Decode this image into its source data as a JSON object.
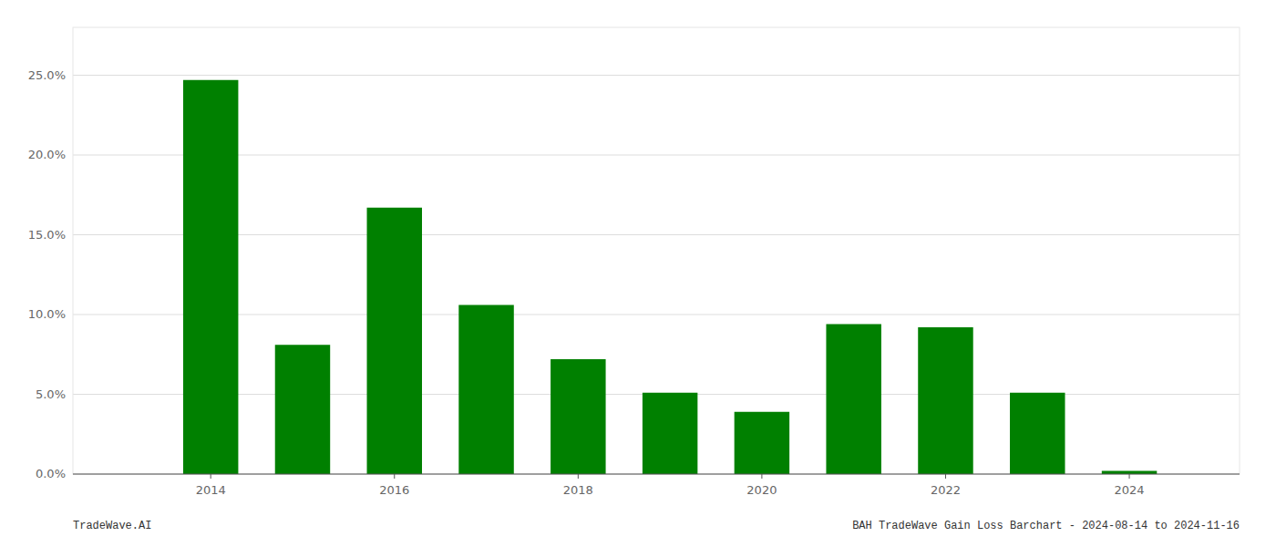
{
  "chart_data": {
    "type": "bar",
    "x": [
      2014,
      2015,
      2016,
      2017,
      2018,
      2019,
      2020,
      2021,
      2022,
      2023,
      2024
    ],
    "values": [
      0.247,
      0.081,
      0.167,
      0.106,
      0.072,
      0.051,
      0.039,
      0.094,
      0.092,
      0.051,
      0.002
    ],
    "color": "#008000",
    "xlim": [
      2012.5,
      2025.2
    ],
    "xticks": [
      2014,
      2016,
      2018,
      2020,
      2022,
      2024
    ],
    "ylim": [
      0,
      0.28
    ],
    "yticks": [
      {
        "value": 0.0,
        "label": "0.0%"
      },
      {
        "value": 0.05,
        "label": "5.0%"
      },
      {
        "value": 0.1,
        "label": "10.0%"
      },
      {
        "value": 0.15,
        "label": "15.0%"
      },
      {
        "value": 0.2,
        "label": "20.0%"
      },
      {
        "value": 0.25,
        "label": "25.0%"
      }
    ],
    "grid": true,
    "annotations": [
      "TradeWave.AI",
      "BAH TradeWave Gain Loss Barchart - 2024-08-14 to 2024-11-16"
    ]
  }
}
